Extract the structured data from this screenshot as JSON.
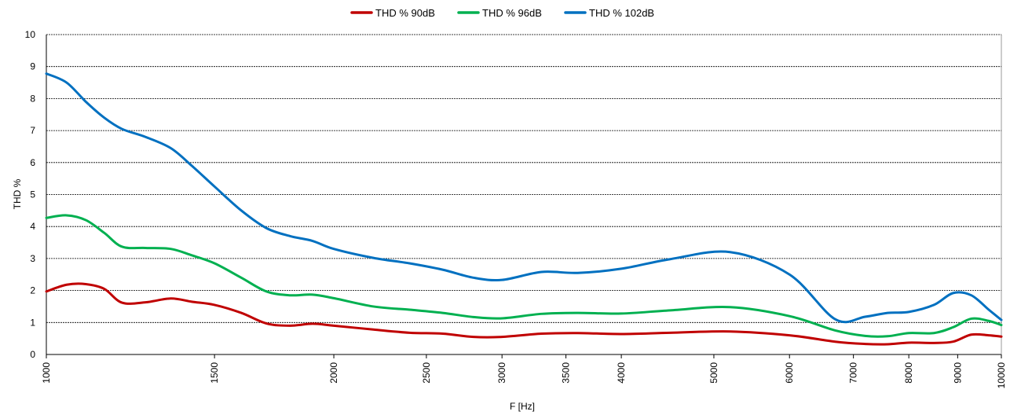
{
  "chart_data": {
    "type": "line",
    "xscale": "log",
    "xlabel": "F [Hz]",
    "ylabel": "THD %",
    "xlim": [
      1000,
      10000
    ],
    "ylim": [
      0,
      10
    ],
    "grid": true,
    "legend_position": "top",
    "x_ticks": [
      1000,
      1500,
      2000,
      2500,
      3000,
      3500,
      4000,
      5000,
      6000,
      7000,
      8000,
      9000,
      10000
    ],
    "y_ticks": [
      0,
      1,
      2,
      3,
      4,
      5,
      6,
      7,
      8,
      9,
      10
    ],
    "series": [
      {
        "name": "THD % 90dB",
        "color": "#c00000",
        "points": [
          [
            1000,
            1.97
          ],
          [
            1050,
            2.18
          ],
          [
            1100,
            2.2
          ],
          [
            1150,
            2.05
          ],
          [
            1200,
            1.62
          ],
          [
            1270,
            1.63
          ],
          [
            1350,
            1.75
          ],
          [
            1420,
            1.65
          ],
          [
            1500,
            1.55
          ],
          [
            1600,
            1.3
          ],
          [
            1700,
            0.97
          ],
          [
            1800,
            0.9
          ],
          [
            1900,
            0.96
          ],
          [
            2000,
            0.9
          ],
          [
            2200,
            0.78
          ],
          [
            2400,
            0.68
          ],
          [
            2600,
            0.65
          ],
          [
            2800,
            0.55
          ],
          [
            3000,
            0.55
          ],
          [
            3300,
            0.65
          ],
          [
            3600,
            0.67
          ],
          [
            4000,
            0.64
          ],
          [
            4500,
            0.68
          ],
          [
            5200,
            0.72
          ],
          [
            6000,
            0.6
          ],
          [
            6700,
            0.4
          ],
          [
            7200,
            0.33
          ],
          [
            7600,
            0.32
          ],
          [
            8000,
            0.37
          ],
          [
            8500,
            0.36
          ],
          [
            8900,
            0.4
          ],
          [
            9300,
            0.62
          ],
          [
            9700,
            0.6
          ],
          [
            10000,
            0.56
          ]
        ]
      },
      {
        "name": "THD % 96dB",
        "color": "#00b050",
        "points": [
          [
            1000,
            4.27
          ],
          [
            1050,
            4.35
          ],
          [
            1100,
            4.2
          ],
          [
            1150,
            3.8
          ],
          [
            1200,
            3.37
          ],
          [
            1270,
            3.33
          ],
          [
            1350,
            3.3
          ],
          [
            1420,
            3.1
          ],
          [
            1500,
            2.85
          ],
          [
            1600,
            2.4
          ],
          [
            1700,
            1.97
          ],
          [
            1800,
            1.85
          ],
          [
            1900,
            1.87
          ],
          [
            2000,
            1.76
          ],
          [
            2200,
            1.5
          ],
          [
            2400,
            1.4
          ],
          [
            2600,
            1.3
          ],
          [
            2800,
            1.17
          ],
          [
            3000,
            1.13
          ],
          [
            3300,
            1.27
          ],
          [
            3600,
            1.3
          ],
          [
            4000,
            1.28
          ],
          [
            4500,
            1.38
          ],
          [
            5200,
            1.48
          ],
          [
            6000,
            1.2
          ],
          [
            6700,
            0.75
          ],
          [
            7200,
            0.58
          ],
          [
            7600,
            0.57
          ],
          [
            8000,
            0.67
          ],
          [
            8500,
            0.67
          ],
          [
            8900,
            0.85
          ],
          [
            9300,
            1.12
          ],
          [
            9700,
            1.05
          ],
          [
            10000,
            0.92
          ]
        ]
      },
      {
        "name": "THD % 102dB",
        "color": "#0070c0",
        "points": [
          [
            1000,
            8.78
          ],
          [
            1050,
            8.5
          ],
          [
            1100,
            7.9
          ],
          [
            1150,
            7.4
          ],
          [
            1200,
            7.05
          ],
          [
            1270,
            6.8
          ],
          [
            1350,
            6.45
          ],
          [
            1420,
            5.9
          ],
          [
            1500,
            5.25
          ],
          [
            1600,
            4.5
          ],
          [
            1700,
            3.95
          ],
          [
            1800,
            3.7
          ],
          [
            1900,
            3.55
          ],
          [
            2000,
            3.3
          ],
          [
            2200,
            3.02
          ],
          [
            2400,
            2.85
          ],
          [
            2600,
            2.65
          ],
          [
            2800,
            2.4
          ],
          [
            3000,
            2.33
          ],
          [
            3300,
            2.58
          ],
          [
            3600,
            2.55
          ],
          [
            4000,
            2.68
          ],
          [
            4500,
            2.98
          ],
          [
            5200,
            3.2
          ],
          [
            6000,
            2.5
          ],
          [
            6700,
            1.1
          ],
          [
            7200,
            1.18
          ],
          [
            7600,
            1.3
          ],
          [
            8000,
            1.33
          ],
          [
            8500,
            1.55
          ],
          [
            8900,
            1.92
          ],
          [
            9300,
            1.85
          ],
          [
            9700,
            1.4
          ],
          [
            10000,
            1.08
          ]
        ]
      }
    ]
  }
}
